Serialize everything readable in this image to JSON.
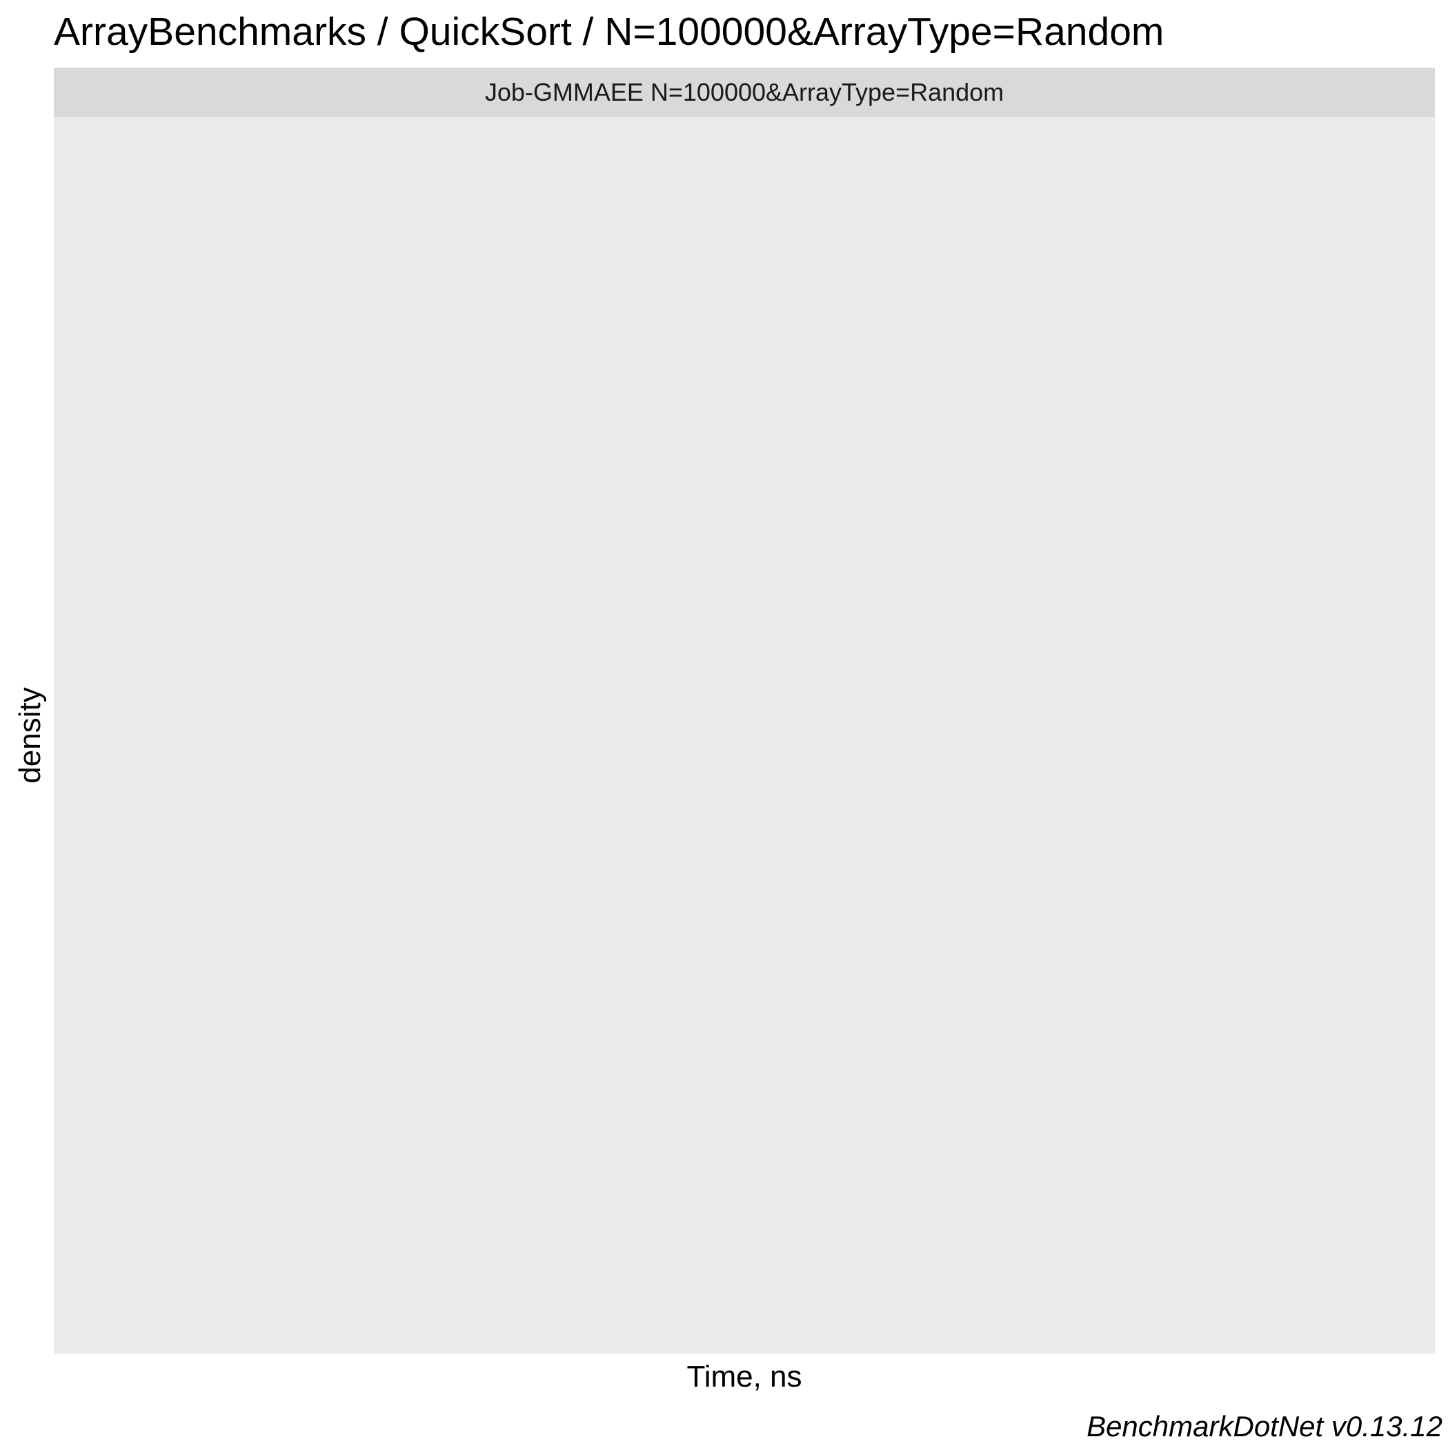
{
  "chart_data": {
    "type": "area",
    "title": "ArrayBenchmarks / QuickSort / N=100000&ArrayType=Random",
    "facet": "Job-GMMAEE N=100000&ArrayType=Random",
    "xlabel": "Time, ns",
    "ylabel": "density",
    "series": [],
    "grid": false,
    "caption": "BenchmarkDotNet v0.13.12",
    "colors": {
      "panel_background": "#ebebeb",
      "strip_background": "#d9d9d9"
    }
  }
}
